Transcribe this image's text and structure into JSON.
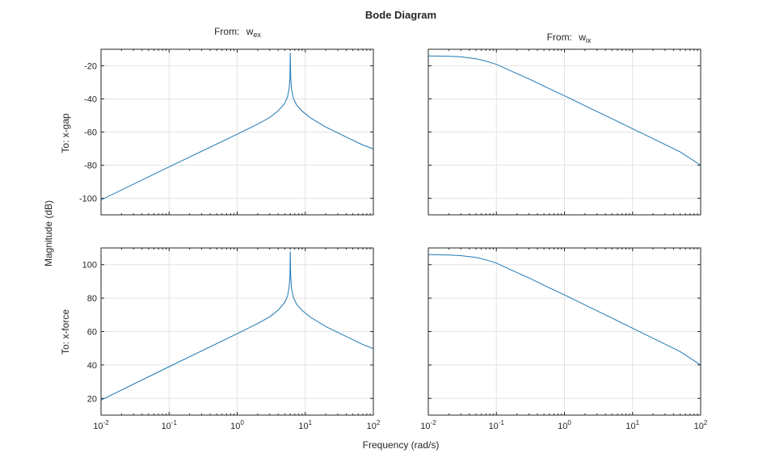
{
  "chart_data": {
    "type": "line",
    "title": "Bode Diagram",
    "xlabel": "Frequency (rad/s)",
    "ylabel": "Magnitude (dB)",
    "x_scale": "log",
    "xlim": [
      0.01,
      100
    ],
    "x_ticks": [
      0.01,
      0.1,
      1,
      10,
      100
    ],
    "x_tick_labels": [
      {
        "base": "10",
        "exp": "-2"
      },
      {
        "base": "10",
        "exp": "-1"
      },
      {
        "base": "10",
        "exp": "0"
      },
      {
        "base": "10",
        "exp": "1"
      },
      {
        "base": "10",
        "exp": "2"
      }
    ],
    "grid": true,
    "line_color": "#1f77b4",
    "inputs": [
      {
        "prefix": "From:",
        "name": "w",
        "sub": "ex"
      },
      {
        "prefix": "From:",
        "name": "w",
        "sub": "ix"
      }
    ],
    "outputs": [
      "To: x-gap",
      "To: x-force"
    ],
    "rows": [
      {
        "output": "To: x-gap",
        "ylim": [
          -110,
          -10
        ],
        "yticks": [
          -100,
          -80,
          -60,
          -40,
          -20
        ],
        "tick_labels": [
          "-100",
          "-80",
          "-60",
          "-40",
          "-20"
        ],
        "panels": [
          {
            "input": "w_ex",
            "series": {
              "x": [
                0.01,
                0.1,
                1,
                2,
                3,
                4,
                5,
                5.5,
                5.8,
                5.95,
                6.03,
                6.1,
                6.3,
                6.7,
                7.5,
                9,
                12,
                20,
                40,
                70,
                100
              ],
              "y": [
                -101,
                -81,
                -61.3,
                -55.2,
                -51.2,
                -47.2,
                -42.6,
                -38.6,
                -33.5,
                -27.2,
                -12,
                -27,
                -34.5,
                -39.7,
                -43.8,
                -47.4,
                -51.5,
                -57,
                -63,
                -67.8,
                -70.2
              ]
            }
          },
          {
            "input": "w_ix",
            "series": {
              "x": [
                0.01,
                0.02,
                0.03,
                0.05,
                0.07,
                0.1,
                0.15,
                0.2,
                0.3,
                0.5,
                1,
                2,
                5,
                10,
                20,
                50,
                100
              ],
              "y": [
                -14,
                -14.2,
                -14.6,
                -15.7,
                -17.1,
                -19.1,
                -22.4,
                -24.7,
                -27.9,
                -32.3,
                -38.1,
                -44.1,
                -52.0,
                -58.0,
                -64.0,
                -72.0,
                -80.0
              ]
            }
          }
        ]
      },
      {
        "output": "To: x-force",
        "ylim": [
          10,
          110
        ],
        "yticks": [
          20,
          40,
          60,
          80,
          100
        ],
        "tick_labels": [
          "20",
          "40",
          "60",
          "80",
          "100"
        ],
        "panels": [
          {
            "input": "w_ex",
            "series": {
              "x": [
                0.01,
                0.1,
                1,
                2,
                3,
                4,
                5,
                5.5,
                5.8,
                5.95,
                6.03,
                6.1,
                6.3,
                6.7,
                7.5,
                9,
                12,
                20,
                40,
                70,
                100
              ],
              "y": [
                19,
                39,
                58.7,
                64.8,
                68.8,
                72.8,
                77.4,
                81.4,
                86.5,
                92.8,
                108,
                93,
                85.5,
                80.3,
                76.2,
                72.6,
                68.5,
                63,
                57,
                52.2,
                49.8
              ]
            }
          },
          {
            "input": "w_ix",
            "series": {
              "x": [
                0.01,
                0.02,
                0.03,
                0.05,
                0.07,
                0.1,
                0.15,
                0.2,
                0.3,
                0.5,
                1,
                2,
                5,
                10,
                20,
                50,
                100
              ],
              "y": [
                106,
                105.8,
                105.4,
                104.3,
                102.9,
                100.9,
                97.6,
                95.3,
                92.1,
                87.7,
                81.9,
                75.9,
                68.0,
                62.0,
                56.0,
                48.0,
                40.0
              ]
            }
          }
        ]
      }
    ]
  }
}
